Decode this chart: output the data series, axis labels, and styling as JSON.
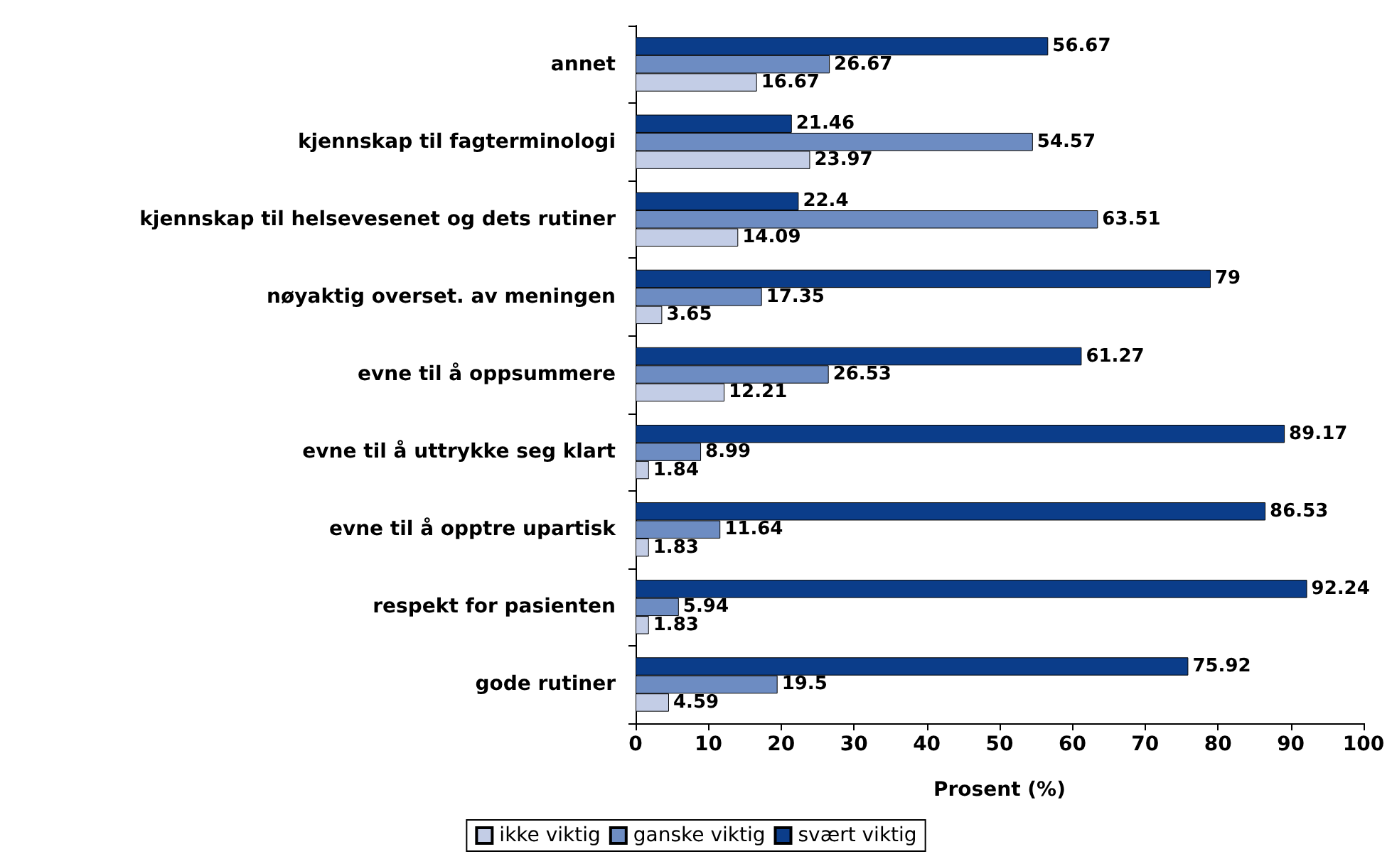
{
  "chart_data": {
    "type": "bar",
    "orientation": "horizontal",
    "xlabel": "Prosent (%)",
    "categories": [
      "annet",
      "kjennskap til fagterminologi",
      "kjennskap til helsevesenet og dets rutiner",
      "nøyaktig overset. av meningen",
      "evne til å oppsummere",
      "evne til å uttrykke seg klart",
      "evne til å opptre upartisk",
      "respekt for pasienten",
      "gode rutiner"
    ],
    "series": [
      {
        "name": "ikke viktig",
        "color": "#c3cde6",
        "values": [
          16.67,
          23.97,
          14.09,
          3.65,
          12.21,
          1.84,
          1.83,
          1.83,
          4.59
        ]
      },
      {
        "name": "ganske viktig",
        "color": "#6d8cc2",
        "values": [
          26.67,
          54.57,
          63.51,
          17.35,
          26.53,
          8.99,
          11.64,
          5.94,
          19.5
        ]
      },
      {
        "name": "svært viktig",
        "color": "#0b3d8a",
        "values": [
          56.67,
          21.46,
          22.4,
          79,
          61.27,
          89.17,
          86.53,
          92.24,
          75.92
        ]
      }
    ],
    "xlim": [
      0,
      100
    ],
    "xticks": [
      0,
      10,
      20,
      30,
      40,
      50,
      60,
      70,
      80,
      90,
      100
    ],
    "data_labels": true,
    "grid": false,
    "legend": "bottom"
  }
}
